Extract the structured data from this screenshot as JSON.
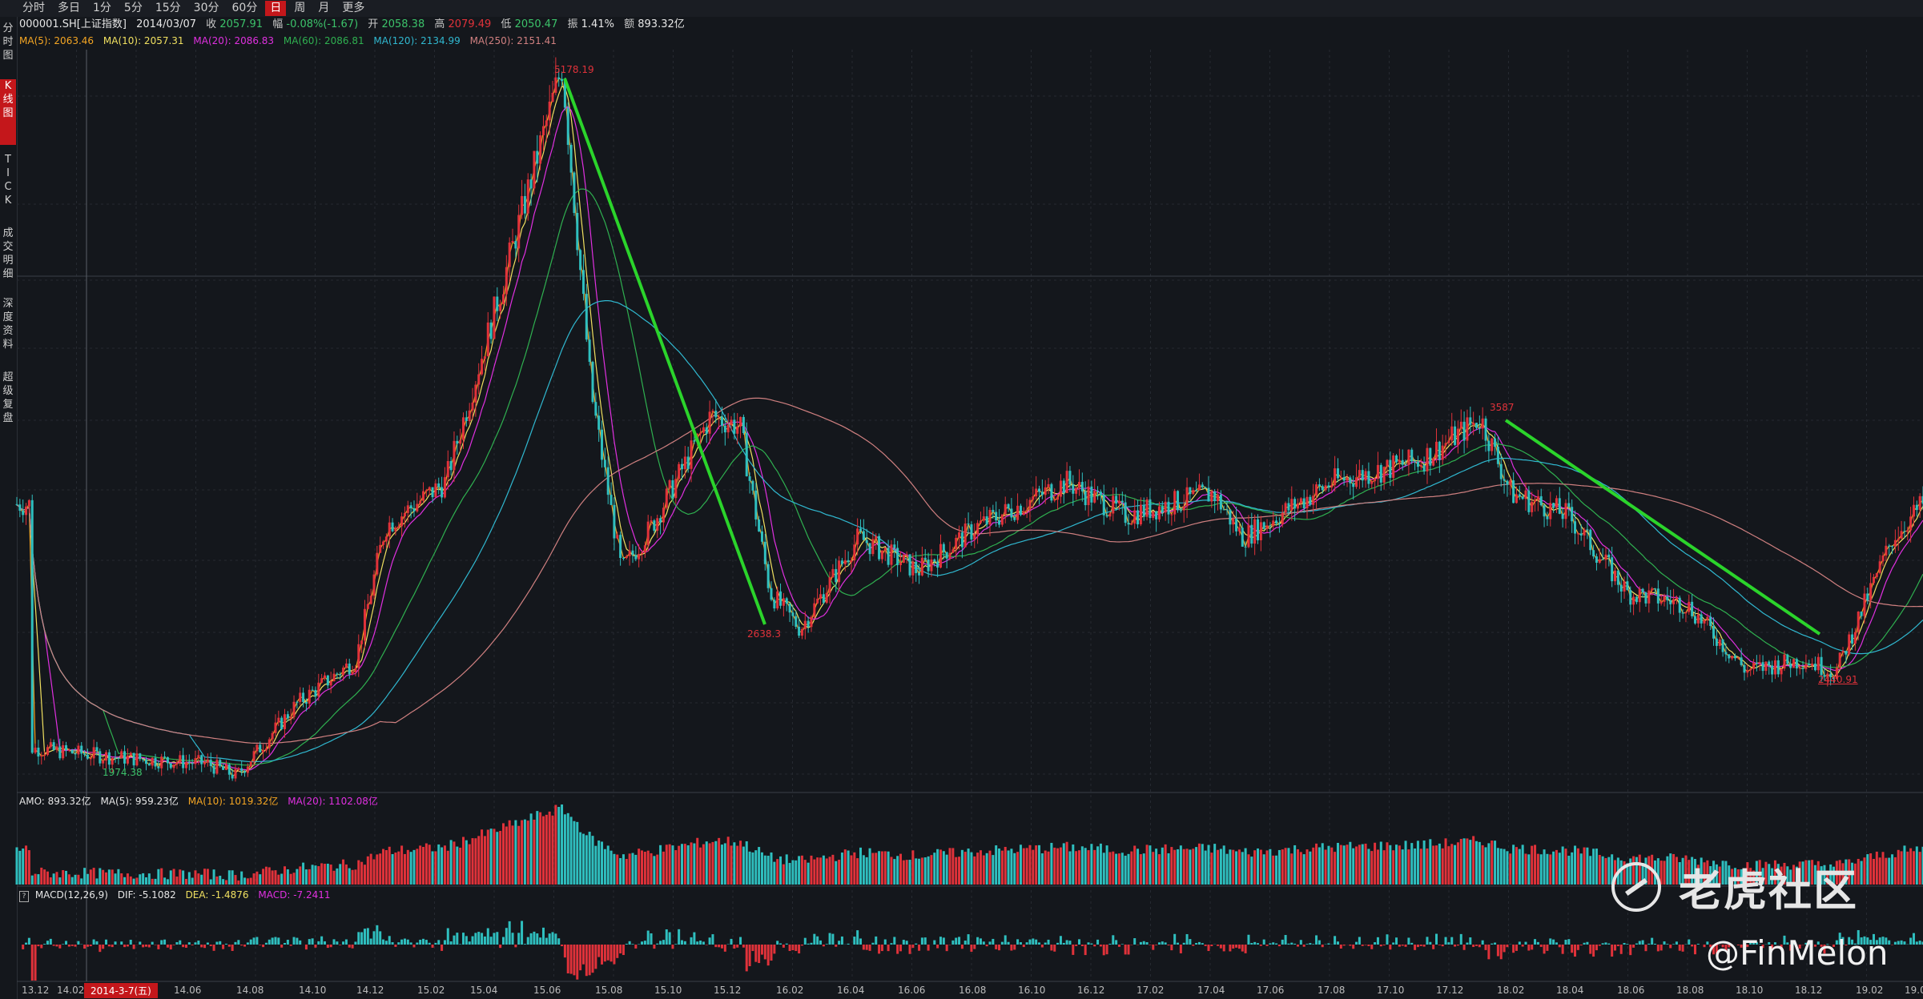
{
  "toolbar": {
    "tabs": [
      "分时",
      "多日",
      "1分",
      "5分",
      "15分",
      "30分",
      "60分",
      "日",
      "周",
      "月",
      "更多"
    ],
    "active": "日"
  },
  "sidebar": {
    "tabs": [
      "分时图",
      "K线图",
      "TICK",
      "成交明细",
      "深度资料",
      "超级复盘"
    ],
    "active": "K线图"
  },
  "info": {
    "code": "000001.SH[上证指数]",
    "date": "2014/03/07",
    "close_label": "收",
    "close": "2057.91",
    "change_label": "幅",
    "change": "-0.08%(-1.67)",
    "open_label": "开",
    "open": "2058.38",
    "high_label": "高",
    "high": "2079.49",
    "low_label": "低",
    "low": "2050.47",
    "amp_label": "振",
    "amp": "1.41%",
    "amount_label": "额",
    "amount": "893.32亿"
  },
  "ma": {
    "ma5": "MA(5): 2063.46",
    "ma10": "MA(10): 2057.31",
    "ma20": "MA(20): 2086.83",
    "ma60": "MA(60): 2086.81",
    "ma120": "MA(120): 2134.99",
    "ma250": "MA(250): 2151.41"
  },
  "amo": {
    "amo": "AMO: 893.32亿",
    "ma5": "MA(5): 959.23亿",
    "ma10": "MA(10): 1019.32亿",
    "ma20": "MA(20): 1102.08亿"
  },
  "macd": {
    "help": "?",
    "title": "MACD(12,26,9)",
    "dif": "DIF: -5.1082",
    "dea": "DEA: -1.4876",
    "macd": "MACD: -7.2411"
  },
  "annotations": {
    "peak": "5178.19",
    "trough1": "2638.3",
    "mid_peak": "3587",
    "trough2": "2440.91",
    "low": "1974.38"
  },
  "xaxis": {
    "ticks": [
      "13.12",
      "14.02",
      "14.06",
      "14.08",
      "14.10",
      "14.12",
      "15.02",
      "15.04",
      "15.06",
      "15.08",
      "15.10",
      "15.12",
      "16.02",
      "16.04",
      "16.06",
      "16.08",
      "16.10",
      "16.12",
      "17.02",
      "17.04",
      "17.06",
      "17.08",
      "17.10",
      "17.12",
      "18.02",
      "18.04",
      "18.06",
      "18.08",
      "18.10",
      "18.12",
      "19.02",
      "19.04"
    ],
    "cursor_date": "2014-3-7(五)"
  },
  "watermark": {
    "brand": "老虎社区",
    "handle": "@FinMelon"
  },
  "chart_data": {
    "type": "candlestick",
    "title": "000001.SH[上证指数]",
    "x_range": [
      "2013-12",
      "2019-04"
    ],
    "y_range": [
      1900,
      5250
    ],
    "series": [
      {
        "name": "上证指数",
        "points": [
          [
            "2013-12",
            2100
          ],
          [
            "2014-03",
            2057.91
          ],
          [
            "2014-06",
            2030
          ],
          [
            "2014-07",
            1974.38
          ],
          [
            "2014-09",
            2300
          ],
          [
            "2014-11",
            2500
          ],
          [
            "2014-12",
            3100
          ],
          [
            "2015-02",
            3300
          ],
          [
            "2015-04",
            4200
          ],
          [
            "2015-06",
            5178.19
          ],
          [
            "2015-07",
            3700
          ],
          [
            "2015-08",
            2900
          ],
          [
            "2015-09",
            3100
          ],
          [
            "2015-11",
            3600
          ],
          [
            "2015-12",
            3550
          ],
          [
            "2016-01",
            2800
          ],
          [
            "2016-02",
            2638.3
          ],
          [
            "2016-04",
            3050
          ],
          [
            "2016-06",
            2900
          ],
          [
            "2016-08",
            3100
          ],
          [
            "2016-11",
            3300
          ],
          [
            "2017-01",
            3150
          ],
          [
            "2017-04",
            3250
          ],
          [
            "2017-05",
            3050
          ],
          [
            "2017-08",
            3300
          ],
          [
            "2017-11",
            3400
          ],
          [
            "2018-01",
            3587
          ],
          [
            "2018-02",
            3250
          ],
          [
            "2018-04",
            3150
          ],
          [
            "2018-06",
            2800
          ],
          [
            "2018-08",
            2750
          ],
          [
            "2018-10",
            2450
          ],
          [
            "2018-12",
            2500
          ],
          [
            "2019-01",
            2440.91
          ],
          [
            "2019-03",
            3050
          ],
          [
            "2019-04",
            3200
          ]
        ]
      }
    ],
    "volume_panel": {
      "label": "AMO"
    },
    "macd_panel": {
      "label": "MACD(12,26,9)"
    },
    "colors": {
      "up": "#e0323a",
      "down": "#2fbfbf",
      "ma5": "#f5a623",
      "ma10": "#f0e060",
      "ma20": "#e030e0",
      "ma60": "#2fb050",
      "ma120": "#30b8d0",
      "ma250": "#d08080",
      "trend": "#2bd42b",
      "bg": "#14171c",
      "grid": "#262a31"
    }
  }
}
